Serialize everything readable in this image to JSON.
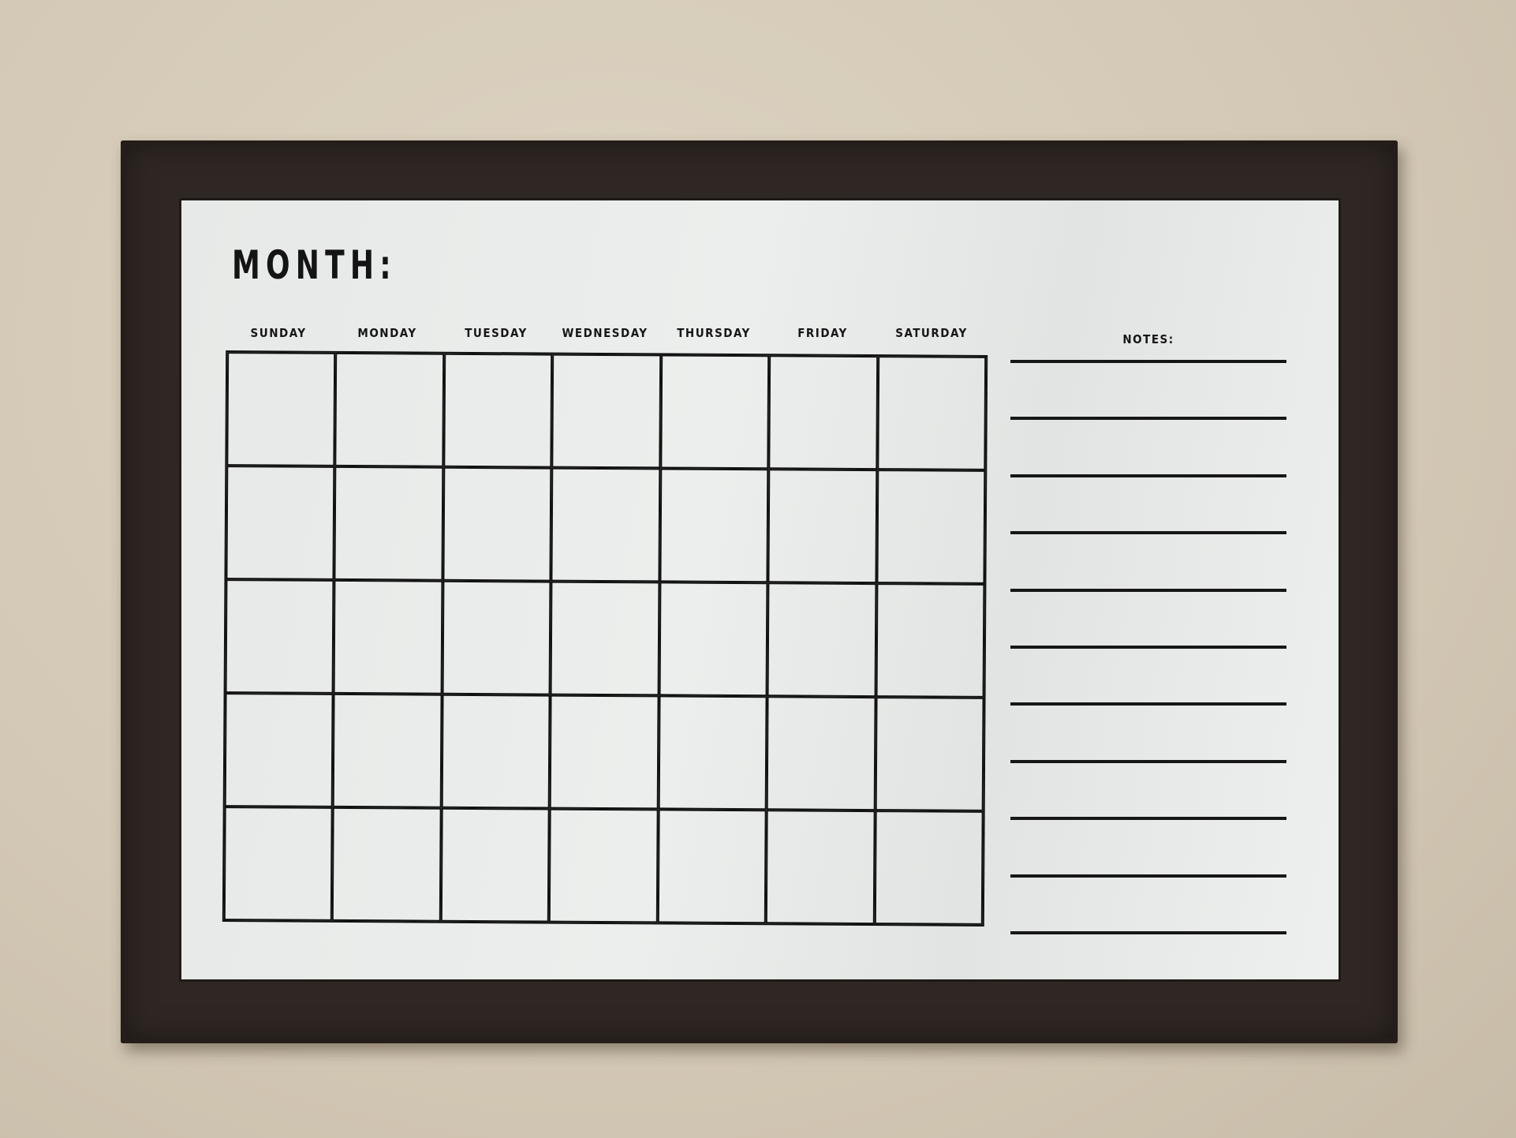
{
  "board": {
    "month_label": "MONTH:",
    "days": [
      "SUNDAY",
      "MONDAY",
      "TUESDAY",
      "WEDNESDAY",
      "THURSDAY",
      "FRIDAY",
      "SATURDAY"
    ],
    "weeks": 5,
    "notes_label": "NOTES:",
    "note_lines": 11
  },
  "colors": {
    "wall": "#d6cbb8",
    "frame": "#2f2723",
    "board": "#e9ebea",
    "ink": "#141414"
  }
}
